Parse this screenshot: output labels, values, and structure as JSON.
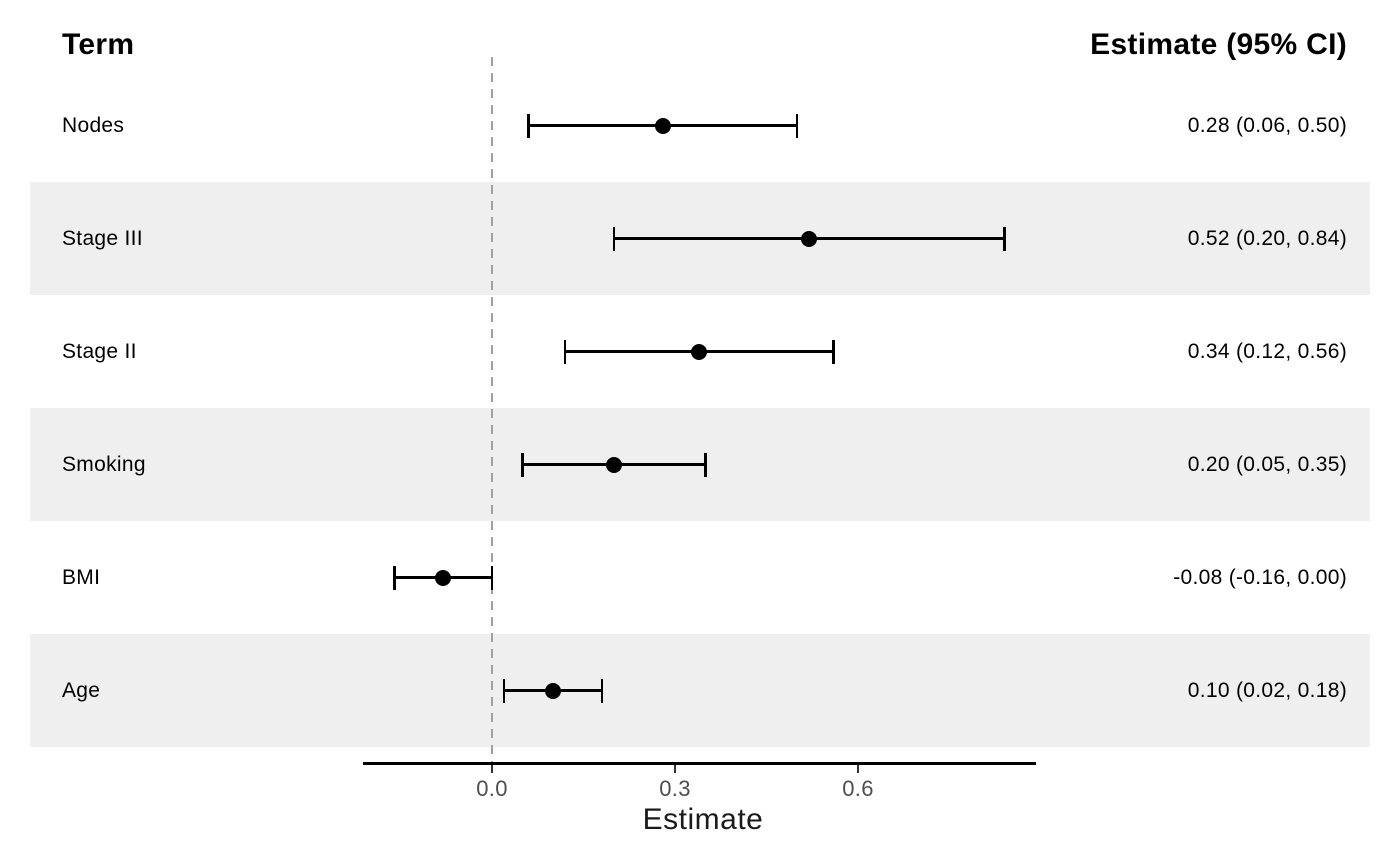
{
  "header": {
    "term": "Term",
    "estimate": "Estimate (95% CI)"
  },
  "rows": [
    {
      "term": "Nodes",
      "estimate": 0.28,
      "ci_low": 0.06,
      "ci_high": 0.5,
      "estimate_label": "0.28 (0.06, 0.50)"
    },
    {
      "term": "Stage III",
      "estimate": 0.52,
      "ci_low": 0.2,
      "ci_high": 0.84,
      "estimate_label": "0.52 (0.20, 0.84)"
    },
    {
      "term": "Stage II",
      "estimate": 0.34,
      "ci_low": 0.12,
      "ci_high": 0.56,
      "estimate_label": "0.34 (0.12, 0.56)"
    },
    {
      "term": "Smoking",
      "estimate": 0.2,
      "ci_low": 0.05,
      "ci_high": 0.35,
      "estimate_label": "0.20 (0.05, 0.35)"
    },
    {
      "term": "BMI",
      "estimate": -0.08,
      "ci_low": -0.16,
      "ci_high": 0.0,
      "estimate_label": "-0.08 (-0.16, 0.00)"
    },
    {
      "term": "Age",
      "estimate": 0.1,
      "ci_low": 0.02,
      "ci_high": 0.18,
      "estimate_label": "0.10 (0.02, 0.18)"
    }
  ],
  "axis": {
    "label": "Estimate",
    "ticks": [
      "0.0",
      "0.3",
      "0.6"
    ],
    "tick_values": [
      0.0,
      0.3,
      0.6
    ],
    "reference_value": 0.0
  },
  "colors": {
    "bg": "#ffffff",
    "fg": "#000000",
    "band": "#efefef",
    "refline": "#a0a0a0",
    "marks": "#000000",
    "ticktext": "#4d4d4d"
  },
  "chart_data": {
    "type": "scatter",
    "subtype": "forest-plot",
    "title": "",
    "xlabel": "Estimate",
    "ylabel": "Term",
    "categories": [
      "Nodes",
      "Stage III",
      "Stage II",
      "Smoking",
      "BMI",
      "Age"
    ],
    "series": [
      {
        "name": "Estimate (95% CI)",
        "estimates": [
          0.28,
          0.52,
          0.34,
          0.2,
          -0.08,
          0.1
        ],
        "ci_low": [
          0.06,
          0.2,
          0.12,
          0.05,
          -0.16,
          0.02
        ],
        "ci_high": [
          0.5,
          0.84,
          0.56,
          0.35,
          0.0,
          0.18
        ]
      }
    ],
    "value_labels": [
      "0.28 (0.06, 0.50)",
      "0.52 (0.20, 0.84)",
      "0.34 (0.12, 0.56)",
      "0.20 (0.05, 0.35)",
      "-0.08 (-0.16, 0.00)",
      "0.10 (0.02, 0.18)"
    ],
    "xlim": [
      -0.21,
      0.89
    ],
    "x_ticks": [
      0.0,
      0.3,
      0.6
    ],
    "reference_line": 0.0,
    "grid": false,
    "legend": false,
    "row_shading": "alternating"
  }
}
